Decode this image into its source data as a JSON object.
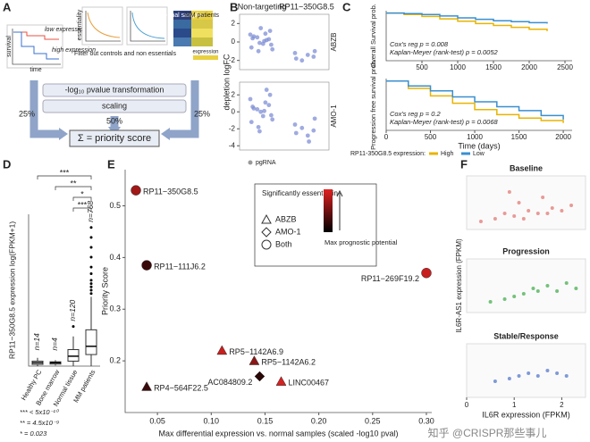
{
  "panel_labels": [
    "A",
    "B",
    "C",
    "D",
    "E",
    "F"
  ],
  "diagram": {
    "survival": "survival",
    "time": "time",
    "low_expression": "low expression",
    "high_expression": "high expression",
    "essentiality": "essentiality",
    "filter": "Filter out controls and non essentials",
    "normal_samples": "normal samples",
    "mm_patients": "MM patients",
    "expression": "expression",
    "transformation": "-log₁₀ pvalue transformation",
    "scaling": "scaling",
    "weights": [
      "25%",
      "50%",
      "25%"
    ],
    "formula": "Σ = priority score"
  },
  "watermark": "知乎 @CRISPR那些事儿",
  "chart_data": [
    {
      "type": "strip",
      "ylabel": "depletion logFC",
      "legend": "pgRNA",
      "facet": "ABZB",
      "categories": [
        "Non-targeting",
        "RP11−350G8.5"
      ],
      "ylim": [
        -3,
        3
      ],
      "yticks": [
        2,
        0,
        -2
      ],
      "series": [
        {
          "name": "Non-targeting",
          "color": "#7f8fd6",
          "values": [
            0.8,
            0.3,
            -0.2,
            0.5,
            -0.6,
            1.2,
            0.1,
            -1.0,
            0.4,
            -0.3,
            0.9,
            -0.1,
            0.6,
            -0.8,
            0.2,
            1.5
          ]
        },
        {
          "name": "RP11−350G8.5",
          "color": "#7f8fd6",
          "values": [
            -1.2,
            -1.6,
            -1.4,
            -2.0,
            -1.8,
            -1.0
          ]
        }
      ]
    },
    {
      "type": "strip",
      "facet": "AMO-1",
      "ylim": [
        -4.5,
        3.5
      ],
      "yticks": [
        2,
        0,
        -2,
        -4
      ],
      "series": [
        {
          "color": "#7f8fd6",
          "values": [
            1.5,
            0.8,
            -0.5,
            0.3,
            -1.2,
            2.0,
            0.1,
            -1.8,
            0.6,
            -0.4,
            1.1,
            -2.3,
            0.4,
            -0.9,
            2.6,
            0.0
          ]
        },
        {
          "color": "#7f8fd6",
          "values": [
            -1.5,
            -2.2,
            -2.8,
            -1.9,
            -2.5,
            -0.8,
            -3.5
          ]
        }
      ]
    },
    {
      "type": "km",
      "ylabel": "Overall Survival prob.",
      "annotations": [
        "Cox's reg p = 0.008",
        "Kaplan-Meyer (rank-test) p = 0.0052"
      ],
      "x": [
        0,
        250,
        500,
        750,
        1000,
        1250,
        1500,
        1750,
        2000,
        2250
      ],
      "xlim": [
        0,
        2600
      ],
      "xticks": [
        500,
        1000,
        1500,
        2000,
        2500
      ],
      "ylim": [
        0,
        1.05
      ],
      "series": [
        {
          "name": "High",
          "color": "#e8b400",
          "values": [
            1,
            0.97,
            0.93,
            0.88,
            0.83,
            0.78,
            0.74,
            0.7,
            0.66,
            0.62
          ]
        },
        {
          "name": "Low",
          "color": "#3a8fd0",
          "values": [
            1,
            0.99,
            0.97,
            0.94,
            0.9,
            0.87,
            0.84,
            0.82,
            0.8,
            0.78
          ]
        }
      ]
    },
    {
      "type": "km",
      "ylabel": "Progression free survival prob.",
      "xlabel": "Time (days)",
      "legend_title": "RP11-350G8.5 expression:",
      "annotations": [
        "Cox's reg p = 0.2",
        "Kaplan-Meyer (rank-test) p = 0.0068"
      ],
      "x": [
        0,
        250,
        500,
        750,
        1000,
        1250,
        1500,
        1750,
        2000
      ],
      "xlim": [
        0,
        2100
      ],
      "xticks": [
        0,
        500,
        1000,
        1500,
        2000
      ],
      "ylim": [
        0,
        1.05
      ],
      "series": [
        {
          "name": "High",
          "color": "#e8b400",
          "values": [
            1,
            0.85,
            0.7,
            0.55,
            0.42,
            0.32,
            0.25,
            0.2,
            0.15
          ]
        },
        {
          "name": "Low",
          "color": "#3a8fd0",
          "values": [
            1,
            0.9,
            0.8,
            0.68,
            0.58,
            0.48,
            0.4,
            0.3,
            0.22
          ]
        }
      ]
    },
    {
      "type": "box",
      "ylabel": "RP11−350G8.5 expression log(FPKM+1)",
      "categories": [
        "Healthy PC",
        "Bone marrow",
        "Normal tissue",
        "MM patients"
      ],
      "count_labels": [
        "n=14",
        "n=4",
        "n=120",
        "n=768"
      ],
      "ylim": [
        0,
        4.6
      ],
      "boxes": [
        {
          "whisker_low": 0,
          "q1": 0.05,
          "median": 0.1,
          "q3": 0.15,
          "whisker_high": 0.25
        },
        {
          "whisker_low": 0.02,
          "q1": 0.06,
          "median": 0.1,
          "q3": 0.13,
          "whisker_high": 0.18
        },
        {
          "whisker_low": 0,
          "q1": 0.15,
          "median": 0.3,
          "q3": 0.5,
          "whisker_high": 0.9
        },
        {
          "whisker_low": 0,
          "q1": 0.35,
          "median": 0.6,
          "q3": 1.1,
          "whisker_high": 2.1
        }
      ],
      "outliers": [
        [],
        [],
        [
          1.2
        ],
        [
          2.2,
          2.3,
          2.4,
          2.5,
          2.6,
          2.8,
          3.0,
          3.3,
          3.6,
          3.9,
          4.2
        ]
      ],
      "significance": [
        "***",
        "**",
        "*",
        "***"
      ],
      "significance_legend": [
        "*** < 5x10⁻¹⁰",
        "** = 4.5x10⁻⁹",
        "* = 0.023"
      ]
    },
    {
      "type": "scatter",
      "xlabel": "Max differential expression vs. normal samples (scaled -log10 pval)",
      "ylabel": "Priority Score",
      "legend_title": "Significantly essential in",
      "legend_items": [
        "ABZB",
        "AMO-1",
        "Both"
      ],
      "colorbar_label": "Max prognostic potential",
      "xlim": [
        0.02,
        0.305
      ],
      "xticks": [
        {
          "value": 0.05,
          "label": "0.05"
        },
        {
          "value": 0.1,
          "label": "0.10"
        },
        {
          "value": 0.15,
          "label": "0.15"
        },
        {
          "value": 0.2,
          "label": "0.20"
        },
        {
          "value": 0.25,
          "label": "0.25"
        },
        {
          "value": 0.3,
          "label": "0.30"
        }
      ],
      "ylim": [
        0.1,
        0.57
      ],
      "yticks": [
        0.2,
        0.3,
        0.4,
        0.5
      ],
      "labels": [
        "RP11−350G8.5",
        "RP11−111J6.2",
        "RP11−269F19.2",
        "RP5−1142A6.9",
        "RP5−1142A6.2",
        "RP4−564F22.5",
        "AC084809.2",
        "LINC00467"
      ],
      "x": [
        0.03,
        0.04,
        0.3,
        0.11,
        0.14,
        0.04,
        0.145,
        0.165
      ],
      "values": [
        0.53,
        0.385,
        0.37,
        0.22,
        0.2,
        0.15,
        0.17,
        0.16
      ],
      "essential_in": [
        "Both",
        "Both",
        "Both",
        "ABZB",
        "ABZB",
        "ABZB",
        "AMO-1",
        "ABZB"
      ],
      "colors": [
        "#a01818",
        "#3a0a0a",
        "#c81e1e",
        "#c81e1e",
        "#8a1616",
        "#3a0a0a",
        "#2a0808",
        "#d42222"
      ]
    },
    {
      "type": "scatter_small",
      "title": "Baseline",
      "color": "#e0706e",
      "xlim": [
        0,
        2.5
      ],
      "ylim": [
        0,
        1
      ],
      "x": [
        0.3,
        0.6,
        0.8,
        1.0,
        1.1,
        1.3,
        1.5,
        1.6,
        1.8,
        2.0,
        2.2,
        0.9,
        1.2,
        1.7
      ],
      "values": [
        0.15,
        0.2,
        0.3,
        0.25,
        0.5,
        0.35,
        0.3,
        0.6,
        0.4,
        0.35,
        0.45,
        0.7,
        0.2,
        0.3
      ]
    },
    {
      "type": "scatter_small",
      "title": "Progression",
      "ylabel": "IL6R-AS1 expression (FPKM)",
      "color": "#3aa845",
      "xlim": [
        0,
        2.5
      ],
      "ylim": [
        0,
        1
      ],
      "x": [
        0.5,
        0.8,
        1.0,
        1.2,
        1.4,
        1.5,
        1.7,
        1.9,
        2.1,
        2.3
      ],
      "values": [
        0.2,
        0.25,
        0.3,
        0.35,
        0.45,
        0.4,
        0.5,
        0.4,
        0.55,
        0.45
      ]
    },
    {
      "type": "scatter_small",
      "title": "Stable/Response",
      "xlabel": "IL6R expression (FPKM)",
      "color": "#4a6fc8",
      "xlim": [
        0,
        2.5
      ],
      "ylim": [
        0,
        1
      ],
      "xticks": [
        0,
        1,
        2
      ],
      "x": [
        0.6,
        0.9,
        1.1,
        1.3,
        1.5,
        1.7,
        1.9,
        2.1
      ],
      "values": [
        0.3,
        0.35,
        0.4,
        0.45,
        0.4,
        0.5,
        0.45,
        0.4
      ]
    }
  ]
}
